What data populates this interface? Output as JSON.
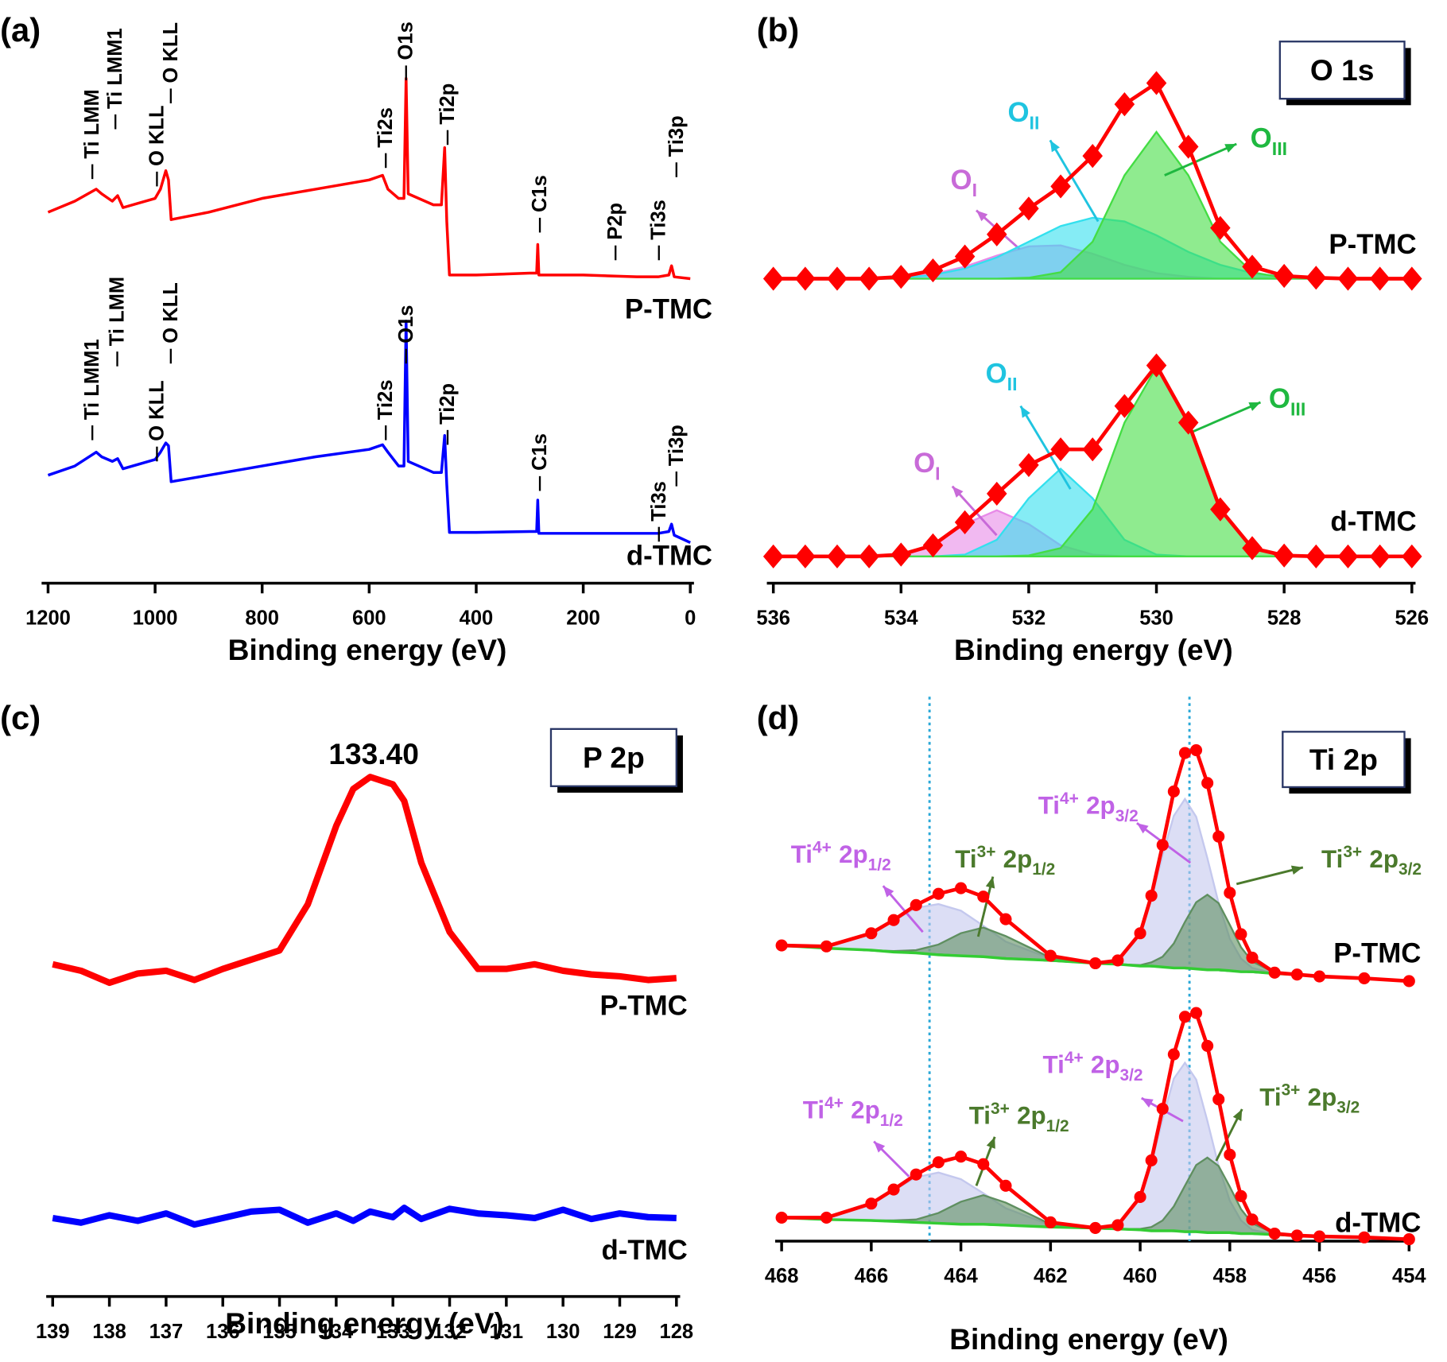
{
  "chart_data": [
    {
      "type": "line",
      "panel_label": "(a)",
      "xlabel": "Binding energy (eV)",
      "xlim": [
        1200,
        0
      ],
      "xticks": [
        1200,
        1000,
        800,
        600,
        400,
        200,
        0
      ],
      "ylim": [
        0,
        622
      ],
      "x": [
        1200,
        1150,
        1110,
        1100,
        1080,
        1070,
        1060,
        1000,
        990,
        980,
        975,
        970,
        900,
        800,
        700,
        600,
        575,
        565,
        545,
        535,
        531,
        527,
        480,
        465,
        459,
        455,
        450,
        400,
        300,
        287,
        285,
        283,
        200,
        100,
        60,
        40,
        35,
        30,
        0
      ],
      "series": [
        {
          "name": "P-TMC",
          "color": "#ff0000",
          "style": "line",
          "values": [
            402,
            414,
            427,
            422,
            414,
            420,
            407,
            417,
            427,
            447,
            437,
            394,
            402,
            417,
            427,
            437,
            442,
            427,
            417,
            417,
            547,
            422,
            410,
            410,
            472,
            392,
            334,
            334,
            336,
            336,
            367,
            334,
            334,
            332,
            332,
            334,
            344,
            332,
            330
          ],
          "peak_labels": [
            "Ti LMM",
            "Ti LMM1",
            "O KLL",
            "O KLL",
            "Ti2s",
            "O1s",
            "Ti2p",
            "C1s",
            "P2p",
            "Ti3s",
            "Ti3p"
          ]
        },
        {
          "name": "d-TMC",
          "color": "#0000ff",
          "style": "line",
          "values": [
            117,
            127,
            142,
            137,
            132,
            135,
            124,
            134,
            142,
            152,
            149,
            110,
            117,
            127,
            137,
            145,
            150,
            142,
            127,
            127,
            284,
            132,
            120,
            120,
            160,
            107,
            55,
            55,
            56,
            56,
            90,
            54,
            54,
            54,
            54,
            56,
            64,
            52,
            44
          ],
          "peak_labels": [
            "Ti LMM1",
            "Ti LMM",
            "O KLL",
            "O KLL",
            "Ti2s",
            "O1s",
            "Ti2p",
            "C1s",
            "Ti3s",
            "Ti3p"
          ]
        }
      ]
    },
    {
      "type": "line",
      "panel_label": "(b)",
      "xlabel": "Binding energy (eV)",
      "box_label": "O 1s",
      "xlim": [
        536,
        526
      ],
      "xticks": [
        536,
        534,
        532,
        530,
        528,
        526
      ],
      "ylim": [
        0,
        600
      ],
      "x": [
        536,
        535.5,
        535,
        534.5,
        534,
        533.5,
        533,
        532.5,
        532,
        531.5,
        531,
        530.5,
        530,
        529.5,
        529,
        528.5,
        528,
        527.5,
        527,
        526.5,
        526
      ],
      "series": [
        {
          "name": "P-TMC",
          "color": "#ff0000",
          "name_color": "#ff0000",
          "style": "diamond",
          "values": [
            330,
            330,
            330,
            330,
            332,
            339,
            354,
            378,
            406,
            430,
            463,
            519,
            542,
            473,
            385,
            343,
            333,
            331,
            330,
            330,
            330
          ]
        },
        {
          "label": {
            "main": "O",
            "sub": "I"
          },
          "color": "#e88ae8",
          "label_color": "#c86ad8",
          "style": "fill",
          "values": [
            330,
            330,
            330,
            330,
            331,
            335,
            343,
            355,
            365,
            366,
            357,
            345,
            336,
            332,
            330,
            330,
            330,
            330,
            330,
            330,
            330
          ]
        },
        {
          "label": {
            "main": "O",
            "sub": "II"
          },
          "color": "#33e0ee",
          "label_color": "#1fc4e0",
          "style": "fill",
          "values": [
            330,
            330,
            330,
            330,
            331,
            334,
            341,
            353,
            370,
            387,
            396,
            392,
            377,
            359,
            345,
            336,
            332,
            331,
            330,
            330,
            330
          ]
        },
        {
          "label": {
            "main": "O",
            "sub": "III"
          },
          "color": "#44dd44",
          "label_color": "#1fb840",
          "style": "fill",
          "values": [
            330,
            330,
            330,
            330,
            330,
            330,
            330,
            330,
            331,
            337,
            370,
            442,
            489,
            442,
            370,
            337,
            331,
            330,
            330,
            330,
            330
          ]
        },
        {
          "name": "d-TMC",
          "color": "#ff0000",
          "name_color": "#1a1aee",
          "style": "diamond",
          "values": [
            29,
            29,
            29,
            29,
            31,
            41,
            66,
            97,
            128,
            145,
            145,
            192,
            236,
            174,
            80,
            38,
            30,
            29,
            29,
            29,
            29
          ]
        },
        {
          "label": {
            "main": "O",
            "sub": "I"
          },
          "color": "#e88ae8",
          "label_color": "#c86ad8",
          "style": "fill",
          "values": [
            29,
            29,
            29,
            29,
            31,
            41,
            64,
            79,
            64,
            41,
            31,
            29,
            29,
            29,
            29,
            29,
            29,
            29,
            29,
            29,
            29
          ]
        },
        {
          "label": {
            "main": "O",
            "sub": "II"
          },
          "color": "#33e0ee",
          "label_color": "#1fc4e0",
          "style": "fill",
          "values": [
            29,
            29,
            29,
            29,
            29,
            29,
            31,
            47,
            92,
            124,
            92,
            47,
            31,
            29,
            29,
            29,
            29,
            29,
            29,
            29,
            29
          ]
        },
        {
          "label": {
            "main": "O",
            "sub": "III"
          },
          "color": "#44dd44",
          "label_color": "#1fb840",
          "style": "fill",
          "values": [
            29,
            29,
            29,
            29,
            29,
            29,
            29,
            29,
            30,
            38,
            80,
            174,
            234,
            174,
            80,
            38,
            30,
            29,
            29,
            29,
            29
          ]
        }
      ]
    },
    {
      "type": "line",
      "panel_label": "(c)",
      "xlabel": "Binding energy (eV)",
      "box_label": "P 2p",
      "annotation": {
        "text": "133.40",
        "color": "#ff0000"
      },
      "xlim": [
        139,
        128
      ],
      "xticks": [
        139,
        138,
        137,
        136,
        135,
        134,
        133,
        132,
        131,
        130,
        129,
        128
      ],
      "ylim": [
        0,
        625
      ],
      "x": [
        139,
        138.5,
        138,
        137.5,
        137,
        136.5,
        136,
        135.5,
        135,
        134.5,
        134,
        133.7,
        133.4,
        133,
        132.8,
        132.5,
        132,
        131.5,
        131,
        130.5,
        130,
        129.5,
        129,
        128.5,
        128
      ],
      "series": [
        {
          "name": "P-TMC",
          "color": "#ff0000",
          "style": "line",
          "values": [
            360,
            353,
            340,
            350,
            353,
            343,
            355,
            365,
            375,
            425,
            510,
            550,
            563,
            555,
            537,
            470,
            395,
            355,
            355,
            360,
            353,
            349,
            347,
            343,
            345
          ]
        },
        {
          "name": "d-TMC",
          "color": "#0000ff",
          "style": "line",
          "values": [
            85,
            80,
            88,
            82,
            90,
            78,
            85,
            92,
            94,
            80,
            90,
            82,
            92,
            86,
            96,
            84,
            95,
            90,
            88,
            85,
            94,
            84,
            90,
            86,
            85
          ]
        }
      ]
    },
    {
      "type": "line",
      "panel_label": "(d)",
      "xlabel": "Binding energy (eV)",
      "box_label": "Ti 2p",
      "xlim": [
        468,
        454
      ],
      "xticks": [
        468,
        466,
        464,
        462,
        460,
        458,
        456,
        454
      ],
      "ylim": [
        0,
        580
      ],
      "reference_lines": [
        464.7,
        458.9
      ],
      "x": [
        468,
        467,
        466,
        465.5,
        465,
        464.5,
        464,
        463.5,
        463,
        462,
        461,
        460.5,
        460,
        459.75,
        459.5,
        459.25,
        459,
        458.75,
        458.5,
        458.25,
        458,
        457.75,
        457.5,
        457,
        456.5,
        456,
        455,
        454
      ],
      "series": [
        {
          "color": "#33cc33",
          "style": "line",
          "values": [
            315,
            312,
            310,
            308,
            307,
            305,
            304,
            303,
            301,
            299,
            296,
            295,
            293,
            293,
            292,
            291,
            291,
            290,
            289,
            289,
            288,
            287,
            287,
            285,
            284,
            282,
            280,
            277
          ]
        },
        {
          "label": {
            "main": "Ti",
            "sup": "4+",
            "orbital": "2p",
            "sub": "3/2"
          },
          "color": "#c4c8ee",
          "label_color": "#c062e6",
          "style": "fill",
          "values": [
            315,
            312,
            310,
            308,
            307,
            305,
            304,
            303,
            301,
            299,
            296,
            299,
            327,
            364,
            411,
            453,
            471,
            452,
            408,
            360,
            322,
            301,
            291,
            285,
            284,
            282,
            280,
            277
          ]
        },
        {
          "label": {
            "main": "Ti",
            "sup": "3+",
            "orbital": "2p",
            "sub": "3/2"
          },
          "color": "#5f8f60",
          "label_color": "#4b7a2c",
          "style": "fill",
          "values": [
            315,
            312,
            310,
            308,
            307,
            305,
            304,
            303,
            301,
            299,
            296,
            295,
            294,
            297,
            303,
            317,
            340,
            361,
            369,
            360,
            337,
            313,
            298,
            286,
            284,
            282,
            280,
            277
          ]
        },
        {
          "label": {
            "main": "Ti",
            "sup": "4+",
            "orbital": "2p",
            "sub": "1/2"
          },
          "color": "#c4c8ee",
          "label_color": "#c062e6",
          "style": "fill",
          "values": [
            315,
            314,
            328,
            341,
            355,
            359,
            352,
            336,
            319,
            301,
            296,
            295,
            293,
            293,
            292,
            291,
            291,
            290,
            289,
            289,
            288,
            287,
            287,
            285,
            284,
            282,
            280,
            277
          ]
        },
        {
          "label": {
            "main": "Ti",
            "sup": "3+",
            "orbital": "2p",
            "sub": "1/2"
          },
          "color": "#5f8f60",
          "label_color": "#4b7a2c",
          "style": "fill",
          "values": [
            315,
            312,
            310,
            309,
            310,
            316,
            328,
            334,
            325,
            302,
            296,
            295,
            293,
            293,
            292,
            291,
            291,
            290,
            289,
            289,
            288,
            287,
            287,
            285,
            284,
            282,
            280,
            277
          ]
        },
        {
          "name": "P-TMC",
          "color": "#ff0000",
          "name_color": "#ff0000",
          "style": "circle",
          "values": [
            315,
            314,
            328,
            342,
            358,
            370,
            376,
            367,
            343,
            304,
            296,
            299,
            328,
            368,
            422,
            479,
            520,
            523,
            488,
            431,
            371,
            327,
            302,
            286,
            284,
            282,
            280,
            277
          ]
        },
        {
          "color": "#33cc33",
          "style": "line",
          "values": [
            25,
            23,
            22,
            21,
            20,
            19,
            18,
            18,
            17,
            15,
            14,
            13,
            12,
            11,
            11,
            11,
            10,
            10,
            9,
            9,
            9,
            8,
            8,
            7,
            6,
            5,
            4,
            2
          ]
        },
        {
          "label": {
            "main": "Ti",
            "sup": "4+",
            "orbital": "2p",
            "sub": "3/2"
          },
          "color": "#c4c8ee",
          "label_color": "#c062e6",
          "style": "fill",
          "values": [
            25,
            23,
            22,
            21,
            20,
            19,
            18,
            18,
            17,
            15,
            14,
            17,
            46,
            82,
            130,
            173,
            190,
            172,
            128,
            80,
            43,
            22,
            12,
            7,
            6,
            5,
            4,
            2
          ]
        },
        {
          "label": {
            "main": "Ti",
            "sup": "3+",
            "orbital": "2p",
            "sub": "3/2"
          },
          "color": "#5f8f60",
          "label_color": "#4b7a2c",
          "style": "fill",
          "values": [
            25,
            23,
            22,
            21,
            20,
            19,
            18,
            18,
            17,
            15,
            14,
            13,
            13,
            15,
            22,
            37,
            59,
            81,
            89,
            80,
            58,
            34,
            19,
            8,
            6,
            5,
            4,
            2
          ]
        },
        {
          "label": {
            "main": "Ti",
            "sup": "4+",
            "orbital": "2p",
            "sub": "1/2"
          },
          "color": "#c4c8ee",
          "label_color": "#c062e6",
          "style": "fill",
          "values": [
            25,
            25,
            40,
            54,
            68,
            73,
            66,
            51,
            35,
            17,
            14,
            13,
            12,
            11,
            11,
            11,
            10,
            10,
            9,
            9,
            9,
            8,
            8,
            7,
            6,
            5,
            4,
            2
          ]
        },
        {
          "label": {
            "main": "Ti",
            "sup": "3+",
            "orbital": "2p",
            "sub": "1/2"
          },
          "color": "#5f8f60",
          "label_color": "#4b7a2c",
          "style": "fill",
          "values": [
            25,
            23,
            22,
            22,
            23,
            30,
            42,
            49,
            41,
            18,
            14,
            13,
            12,
            11,
            11,
            11,
            10,
            10,
            9,
            9,
            9,
            8,
            8,
            7,
            6,
            5,
            4,
            2
          ]
        },
        {
          "name": "d-TMC",
          "color": "#ff0000",
          "name_color": "#1a1aee",
          "style": "circle",
          "values": [
            25,
            25,
            40,
            55,
            71,
            84,
            90,
            82,
            59,
            20,
            14,
            17,
            47,
            86,
            141,
            199,
            239,
            243,
            208,
            151,
            92,
            48,
            23,
            8,
            6,
            5,
            4,
            2
          ]
        }
      ]
    }
  ]
}
